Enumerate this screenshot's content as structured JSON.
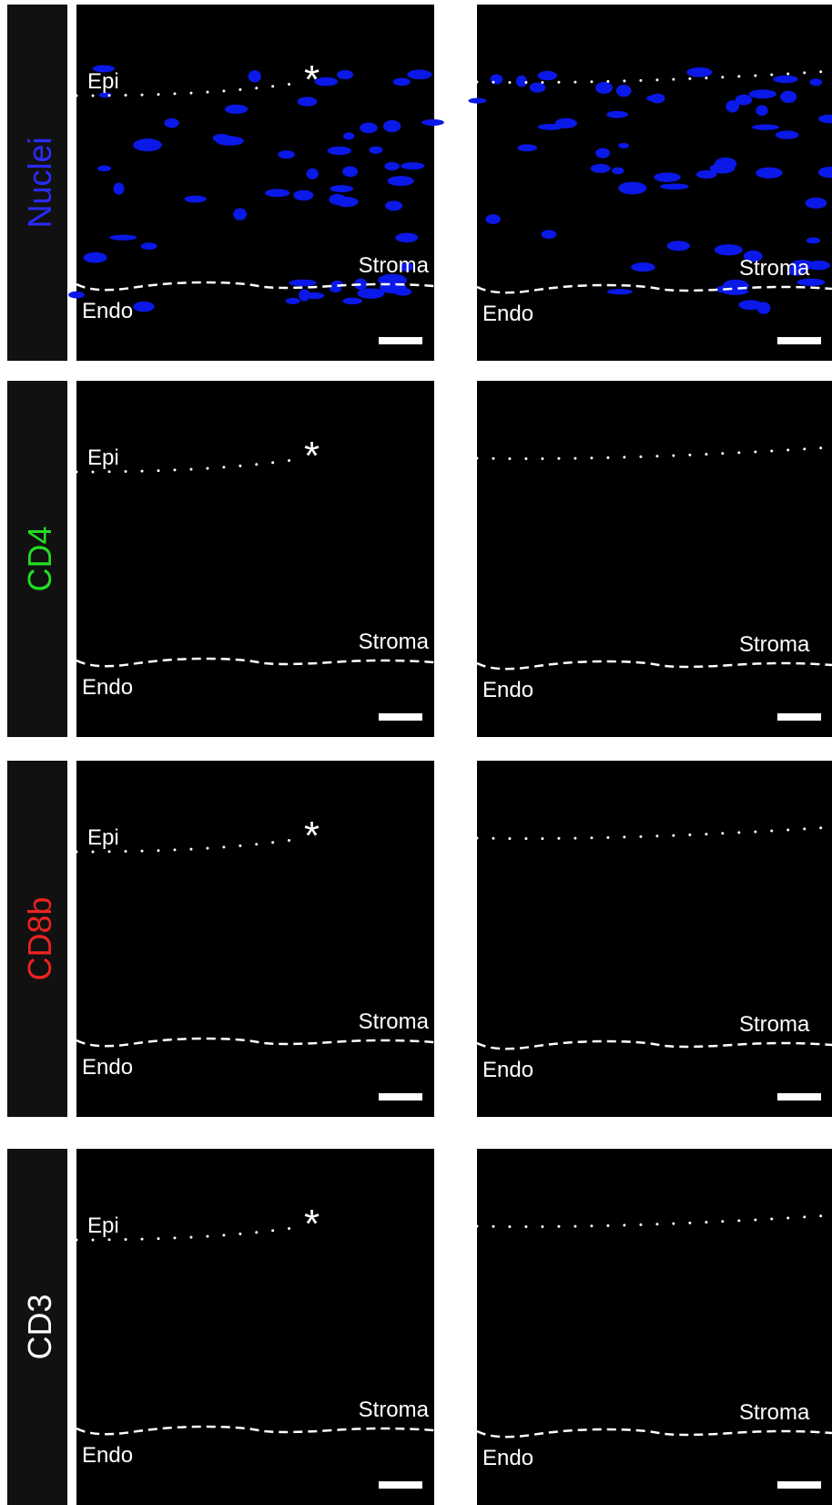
{
  "rows": [
    {
      "label": "Nuclei",
      "color": "#2b2bff",
      "left": {
        "epi": "Epi",
        "asterisk": "*",
        "stroma": "Stroma",
        "endo": "Endo"
      },
      "right": {
        "stroma": "Stroma",
        "endo": "Endo"
      }
    },
    {
      "label": "CD4",
      "color": "#22dd22",
      "left": {
        "epi": "Epi",
        "asterisk": "*",
        "stroma": "Stroma",
        "endo": "Endo"
      },
      "right": {
        "stroma": "Stroma",
        "endo": "Endo"
      }
    },
    {
      "label": "CD8b",
      "color": "#ee2222",
      "left": {
        "epi": "Epi",
        "asterisk": "*",
        "stroma": "Stroma",
        "endo": "Endo"
      },
      "right": {
        "stroma": "Stroma",
        "endo": "Endo"
      }
    },
    {
      "label": "CD3",
      "color": "#ffffff",
      "left": {
        "epi": "Epi",
        "asterisk": "*",
        "stroma": "Stroma",
        "endo": "Endo"
      },
      "right": {
        "stroma": "Stroma",
        "endo": "Endo"
      }
    }
  ]
}
